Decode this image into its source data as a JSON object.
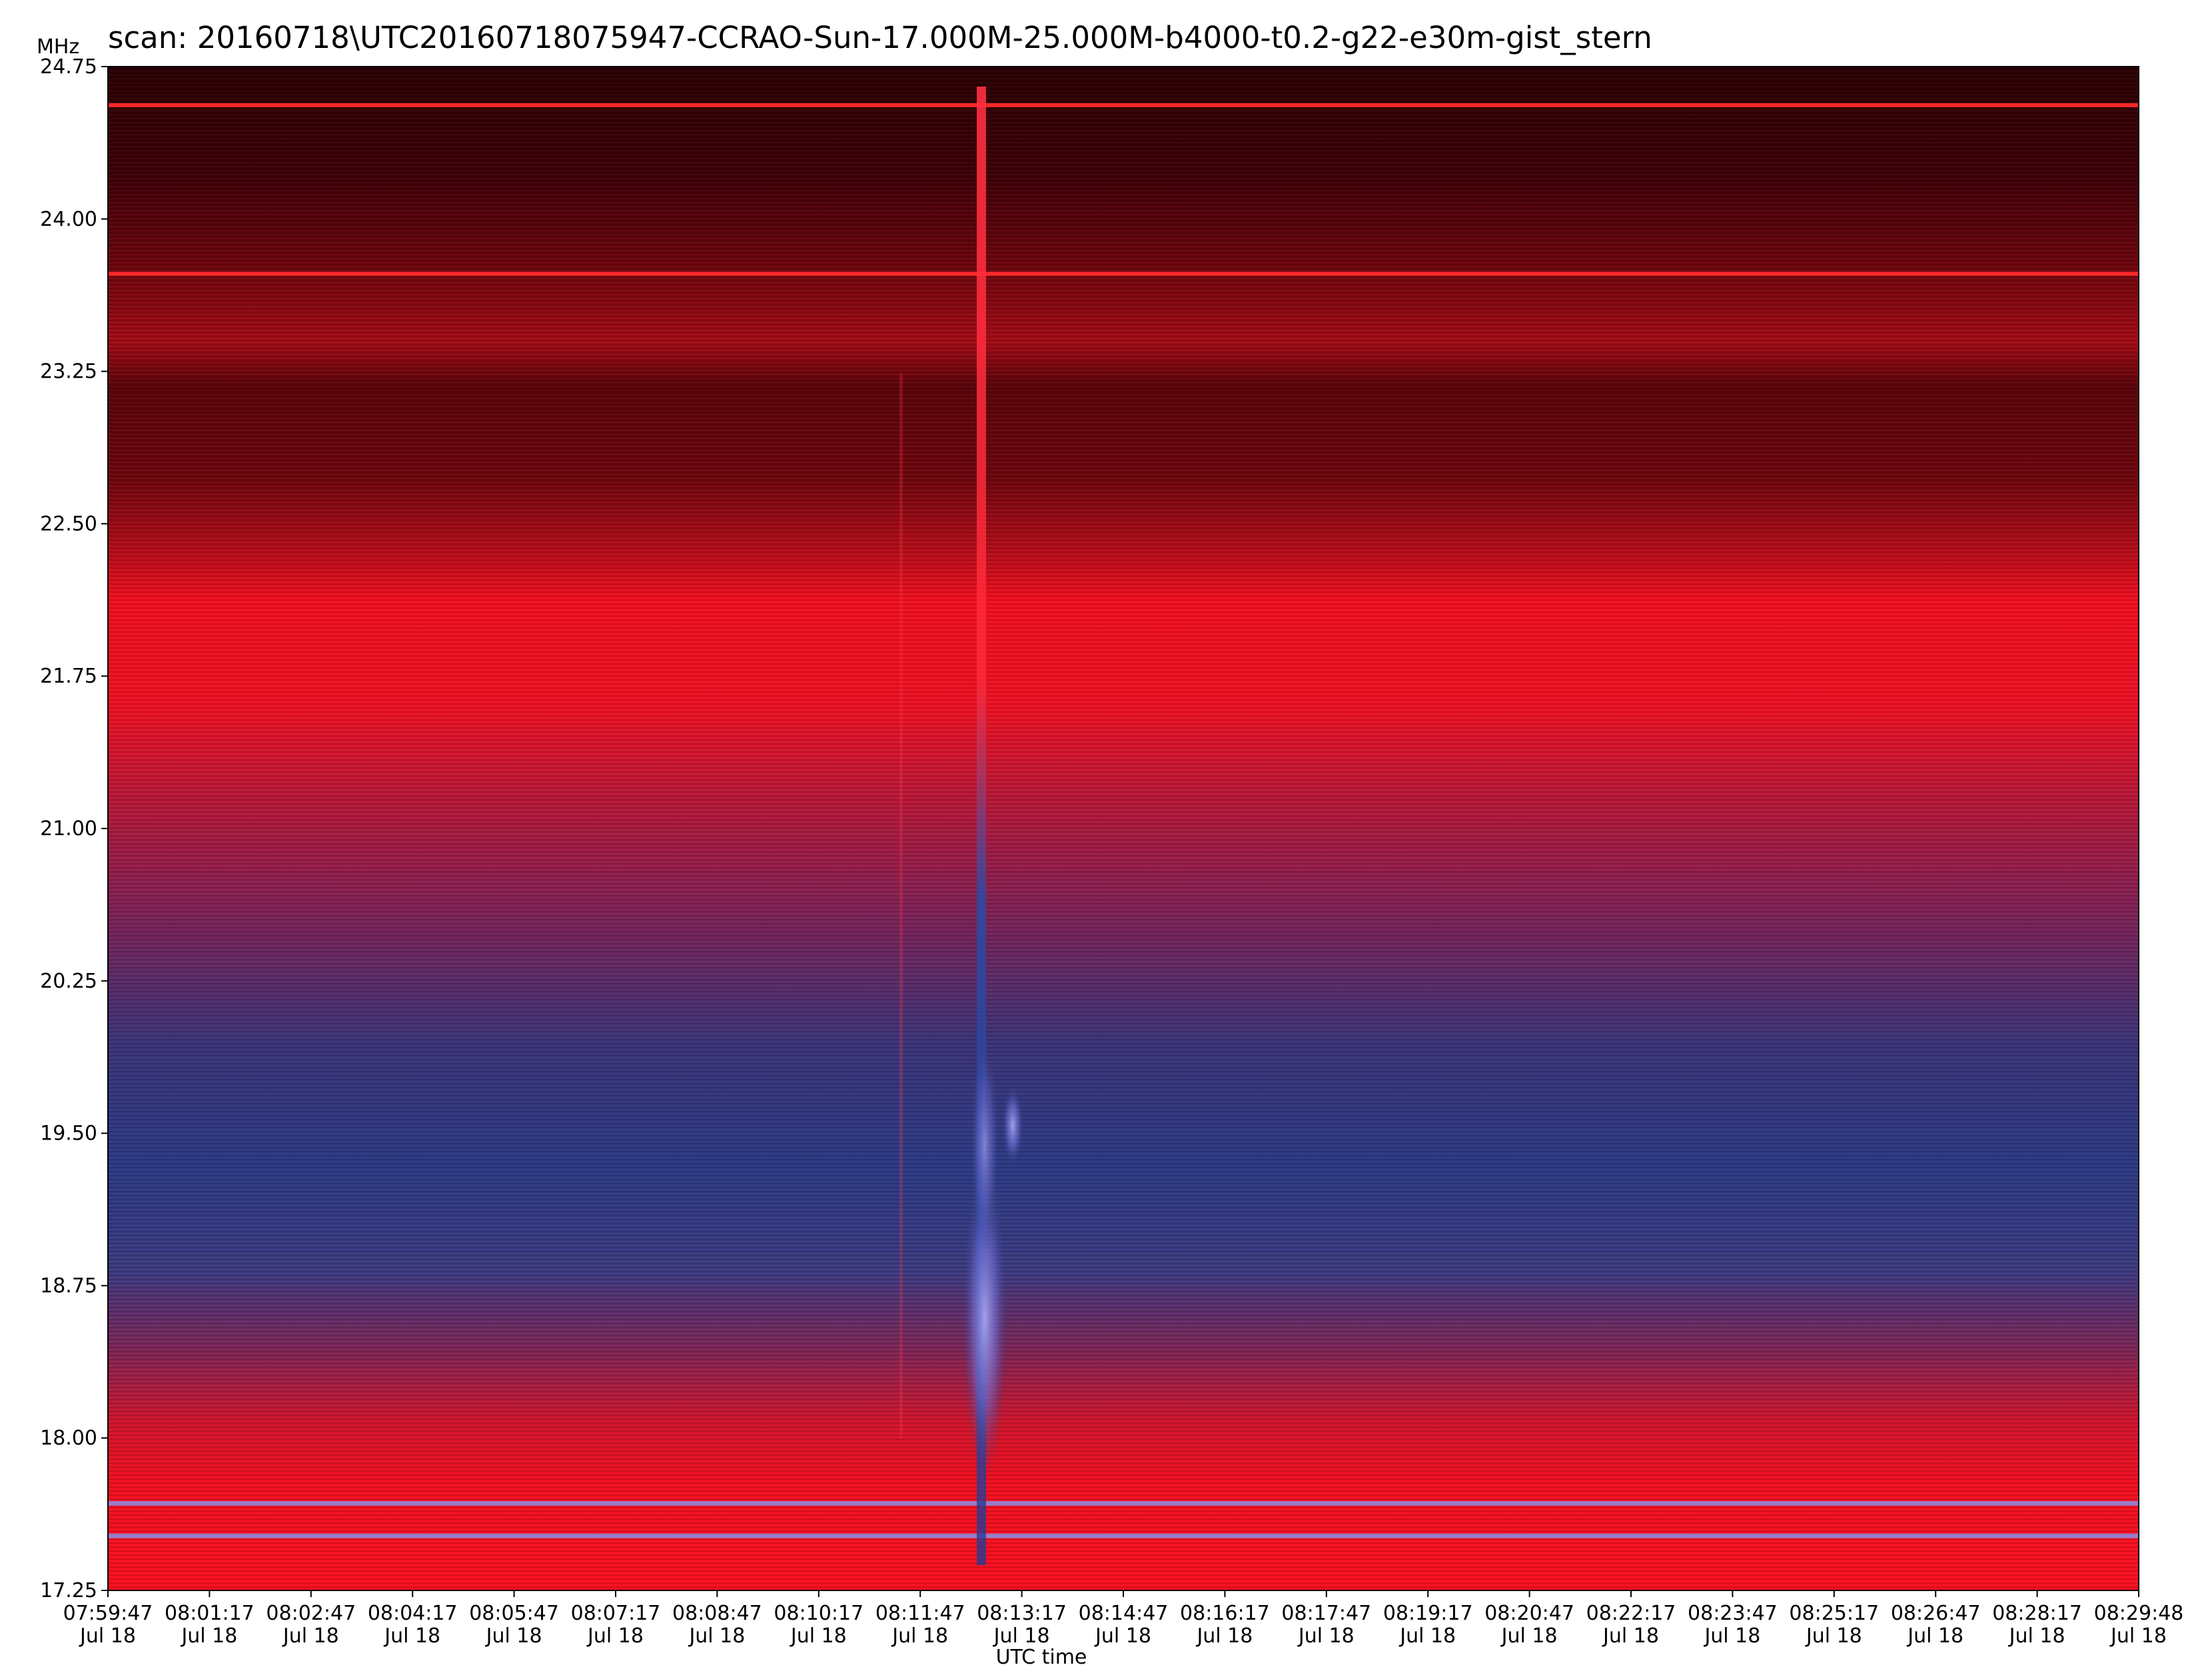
{
  "chart_data": {
    "type": "heatmap",
    "title": "scan: 20160718\\UTC20160718075947-CCRAO-Sun-17.000M-25.000M-b4000-t0.2-g22-e30m-gist_stern",
    "ylabel": "MHz",
    "xlabel": "UTC time",
    "ylim": [
      17.25,
      24.75
    ],
    "y_ticks": [
      "24.75",
      "24.00",
      "23.25",
      "22.50",
      "21.75",
      "21.00",
      "20.25",
      "19.50",
      "18.75",
      "18.00",
      "17.25"
    ],
    "x_ticks": [
      {
        "time": "07:59:47",
        "date": "Jul 18"
      },
      {
        "time": "08:01:17",
        "date": "Jul 18"
      },
      {
        "time": "08:02:47",
        "date": "Jul 18"
      },
      {
        "time": "08:04:17",
        "date": "Jul 18"
      },
      {
        "time": "08:05:47",
        "date": "Jul 18"
      },
      {
        "time": "08:07:17",
        "date": "Jul 18"
      },
      {
        "time": "08:08:47",
        "date": "Jul 18"
      },
      {
        "time": "08:10:17",
        "date": "Jul 18"
      },
      {
        "time": "08:11:47",
        "date": "Jul 18"
      },
      {
        "time": "08:13:17",
        "date": "Jul 18"
      },
      {
        "time": "08:14:47",
        "date": "Jul 18"
      },
      {
        "time": "08:16:17",
        "date": "Jul 18"
      },
      {
        "time": "08:17:47",
        "date": "Jul 18"
      },
      {
        "time": "08:19:17",
        "date": "Jul 18"
      },
      {
        "time": "08:20:47",
        "date": "Jul 18"
      },
      {
        "time": "08:22:17",
        "date": "Jul 18"
      },
      {
        "time": "08:23:47",
        "date": "Jul 18"
      },
      {
        "time": "08:25:17",
        "date": "Jul 18"
      },
      {
        "time": "08:26:47",
        "date": "Jul 18"
      },
      {
        "time": "08:28:17",
        "date": "Jul 18"
      },
      {
        "time": "08:29:48",
        "date": "Jul 18"
      }
    ],
    "colormap": "gist_stern",
    "colors": {
      "dark_top": "#3a0006",
      "mid_red": "#c8141e",
      "bright_red": "#f21020",
      "blue": "#2f3f86",
      "lavender": "#8c8ee6",
      "rfi_line": "#ff2a2a"
    },
    "features": {
      "rfi_lines_mhz": [
        24.56,
        23.73,
        17.68,
        17.52
      ],
      "burst_time": "08:12:45",
      "burst_freq_range_mhz": [
        17.6,
        24.7
      ]
    }
  }
}
